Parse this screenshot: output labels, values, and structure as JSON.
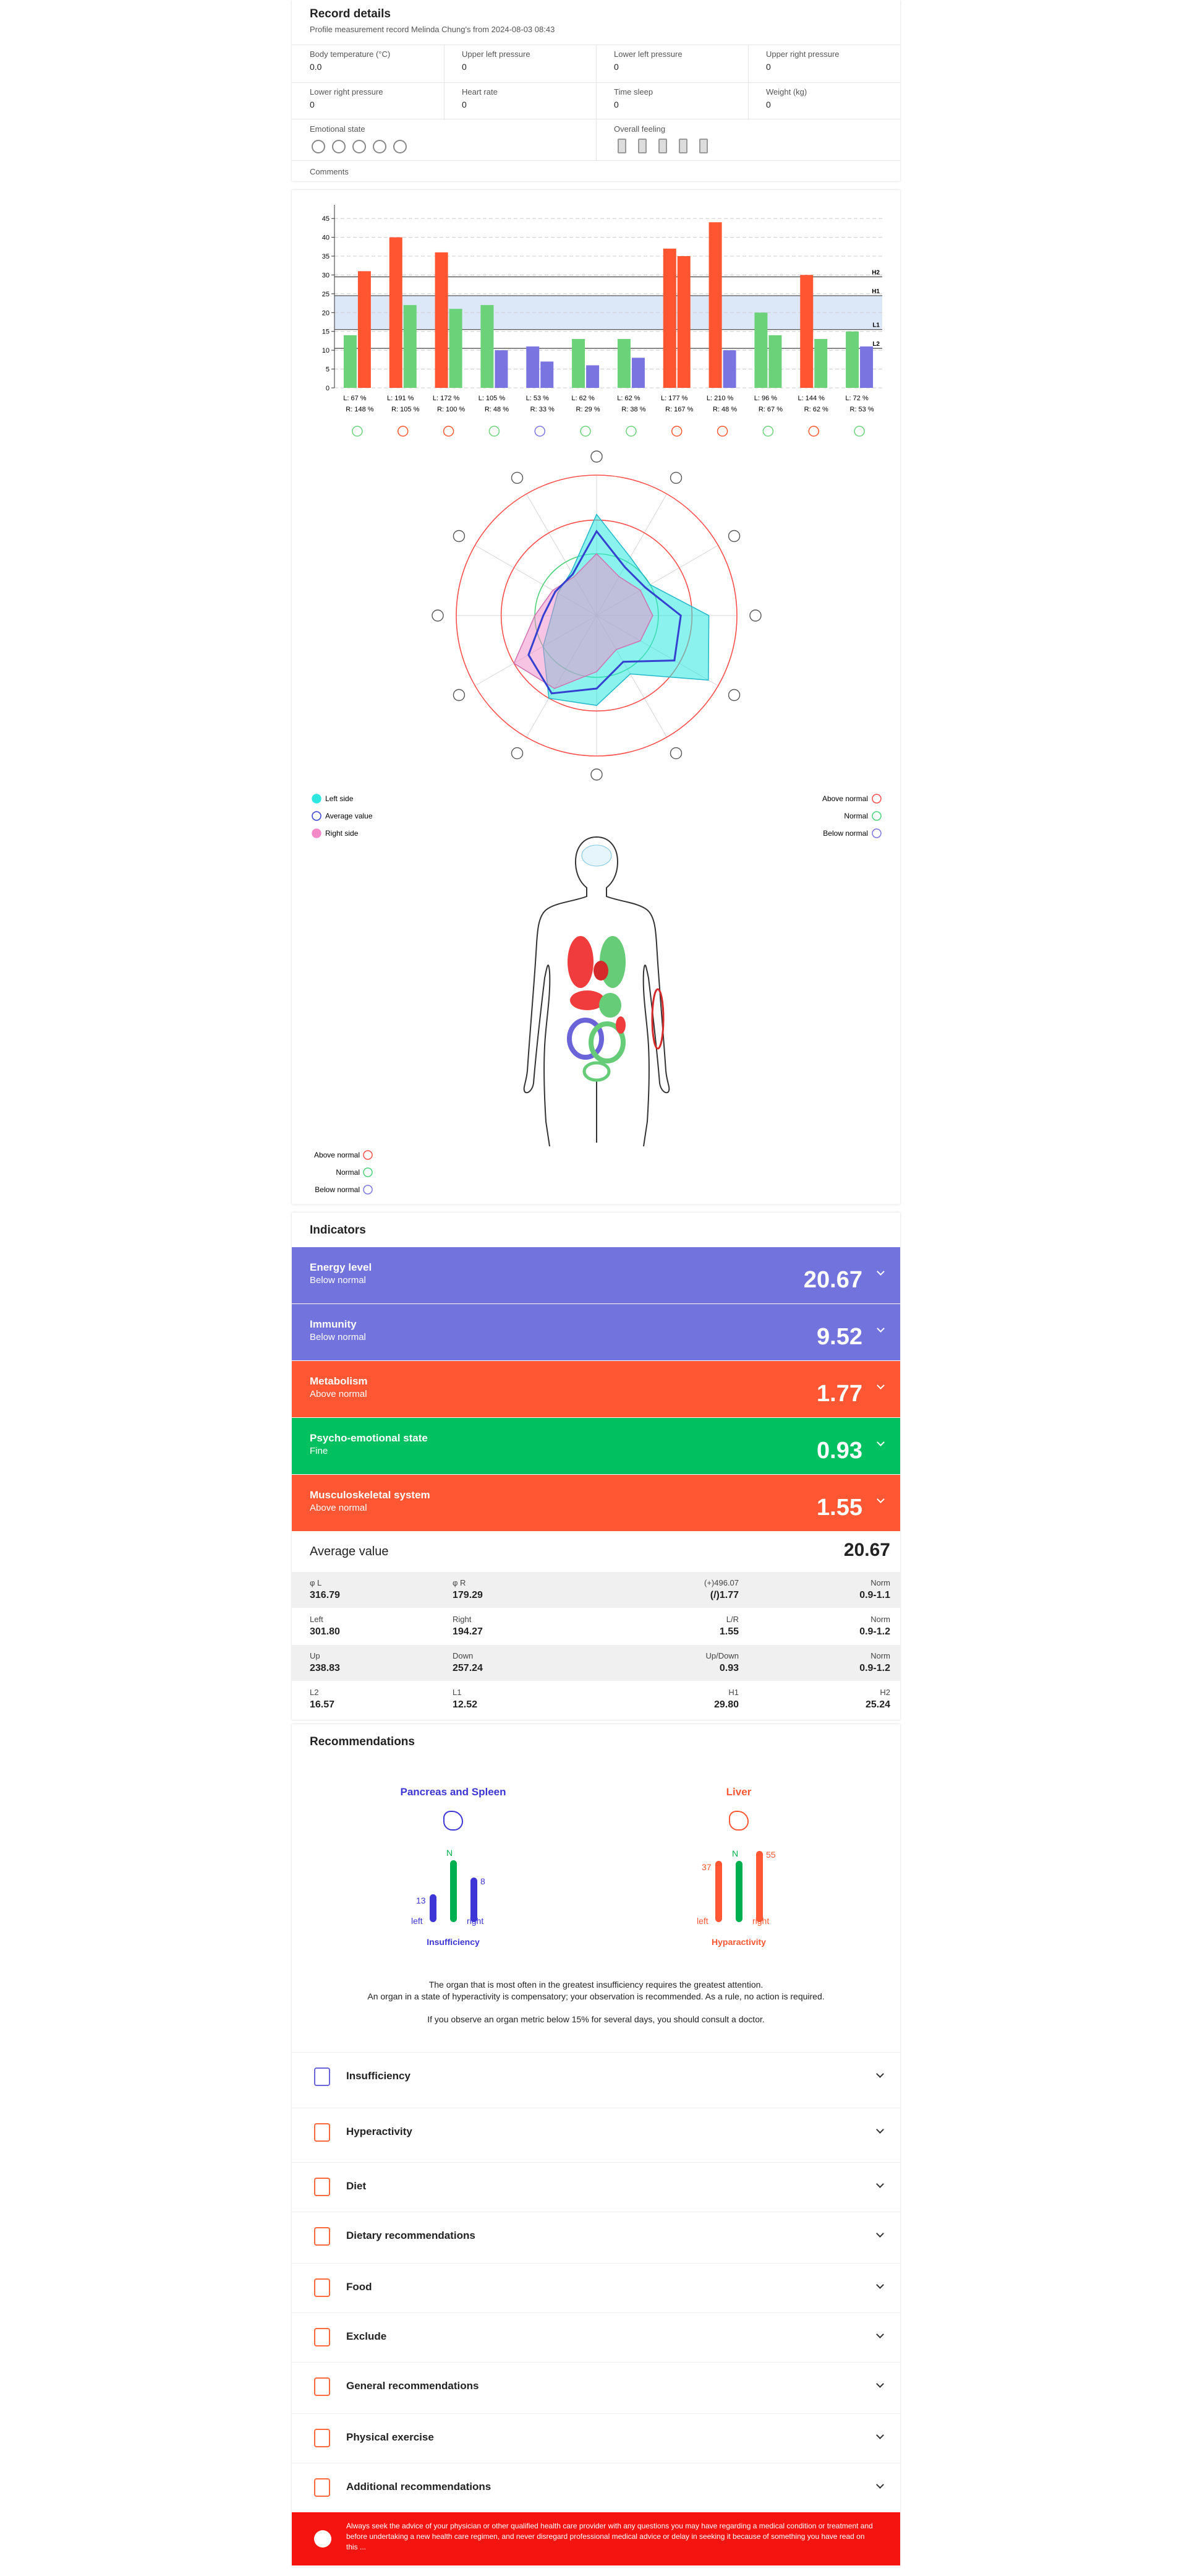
{
  "record": {
    "title": "Record details",
    "subtitle": "Profile measurement record Melinda Chung's from 2024-08-03 08:43",
    "fields": [
      {
        "label": "Body temperature (°C)",
        "value": "0.0"
      },
      {
        "label": "Upper left pressure",
        "value": "0"
      },
      {
        "label": "Lower left pressure",
        "value": "0"
      },
      {
        "label": "Upper right pressure",
        "value": "0"
      },
      {
        "label": "Lower right pressure",
        "value": "0"
      },
      {
        "label": "Heart rate",
        "value": "0"
      },
      {
        "label": "Time sleep",
        "value": "0"
      },
      {
        "label": "Weight (kg)",
        "value": "0"
      }
    ],
    "emotional_state": "Emotional state",
    "overall_feeling": "Overall feeling",
    "comments": "Comments"
  },
  "chart_data": [
    {
      "type": "bar",
      "ylim": [
        0,
        47
      ],
      "yticks": [
        0,
        5,
        10,
        15,
        20,
        25,
        30,
        35,
        40,
        45
      ],
      "grid": true,
      "x_labels": [
        [
          "L: 67 %",
          "R: 148 %"
        ],
        [
          "L: 191 %",
          "R: 105 %"
        ],
        [
          "L: 172 %",
          "R: 100 %"
        ],
        [
          "L: 105 %",
          "R: 48 %"
        ],
        [
          "L: 53 %",
          "R: 33 %"
        ],
        [
          "L: 62 %",
          "R: 29 %"
        ],
        [
          "L: 62 %",
          "R: 38 %"
        ],
        [
          "L: 177 %",
          "R: 167 %"
        ],
        [
          "L: 210 %",
          "R: 48 %"
        ],
        [
          "L: 96 %",
          "R: 67 %"
        ],
        [
          "L: 144 %",
          "R: 62 %"
        ],
        [
          "L: 72 %",
          "R: 53 %"
        ]
      ],
      "series": [
        {
          "values": [
            14,
            40,
            36,
            22,
            11,
            13,
            13,
            37,
            44,
            20,
            30,
            15
          ],
          "colors": [
            "#6bd27a",
            "#ff5530",
            "#ff5530",
            "#6bd27a",
            "#7a74e0",
            "#6bd27a",
            "#6bd27a",
            "#ff5530",
            "#ff5530",
            "#6bd27a",
            "#ff5530",
            "#6bd27a"
          ]
        },
        {
          "values": [
            31,
            22,
            21,
            10,
            7,
            6,
            8,
            35,
            10,
            14,
            13,
            11
          ],
          "colors": [
            "#ff5530",
            "#6bd27a",
            "#6bd27a",
            "#7a74e0",
            "#7a74e0",
            "#7a74e0",
            "#7a74e0",
            "#ff5530",
            "#7a74e0",
            "#6bd27a",
            "#6bd27a",
            "#7a74e0"
          ]
        }
      ],
      "reference_lines": [
        {
          "label": "H2",
          "value": 29.5
        },
        {
          "label": "H1",
          "value": 24.5
        },
        {
          "label": "L1",
          "value": 15.5
        },
        {
          "label": "L2",
          "value": 10.5
        }
      ],
      "band_color": "#dce8f8"
    },
    {
      "type": "radar",
      "rlim": [
        0,
        250
      ],
      "rings": [
        {
          "value": 250,
          "color": "#ff4d4d"
        },
        {
          "value": 170,
          "color": "#ff4d4d"
        },
        {
          "value": 110,
          "color": "#4cd07a"
        }
      ],
      "series": [
        {
          "name": "Left side",
          "color": "#2ee8e0",
          "values": [
            180,
            120,
            110,
            200,
            230,
            120,
            160,
            170,
            110,
            80,
            80,
            90
          ]
        },
        {
          "name": "Average value",
          "color": "#3340d0",
          "values": [
            150,
            100,
            100,
            150,
            160,
            95,
            130,
            160,
            140,
            95,
            85,
            85
          ]
        },
        {
          "name": "Right side",
          "color": "#f28ac8",
          "values": [
            110,
            80,
            90,
            100,
            90,
            70,
            100,
            150,
            170,
            110,
            90,
            80
          ]
        }
      ],
      "ring_legend": [
        {
          "label": "Above normal",
          "color": "#ff4d4d"
        },
        {
          "label": "Normal",
          "color": "#4cd07a"
        },
        {
          "label": "Below normal",
          "color": "#7a74e0"
        }
      ]
    }
  ],
  "body_legend": [
    {
      "label": "Above normal",
      "color": "#ff4d4d"
    },
    {
      "label": "Normal",
      "color": "#4cd07a"
    },
    {
      "label": "Below normal",
      "color": "#7a74e0"
    }
  ],
  "indicators": {
    "title": "Indicators",
    "items": [
      {
        "name": "Energy level",
        "status": "Below normal",
        "value": 20.67,
        "color": "#7373de"
      },
      {
        "name": "Immunity",
        "status": "Below normal",
        "value": 9.52,
        "color": "#7373de"
      },
      {
        "name": "Metabolism",
        "status": "Above normal",
        "value": 1.77,
        "color": "#ff5733"
      },
      {
        "name": "Psycho-emotional state",
        "status": "Fine",
        "value": 0.93,
        "color": "#00c060"
      },
      {
        "name": "Musculoskeletal system",
        "status": "Above normal",
        "value": 1.55,
        "color": "#ff5733"
      }
    ]
  },
  "average": {
    "label": "Average value",
    "value": 20.67
  },
  "stats": [
    [
      [
        "φ L",
        "316.79"
      ],
      [
        "φ R",
        "179.29"
      ],
      [
        "(+)496.07",
        "(/)1.77"
      ],
      [
        "Norm",
        "0.9-1.1"
      ]
    ],
    [
      [
        "Left",
        "301.80"
      ],
      [
        "Right",
        "194.27"
      ],
      [
        "L/R",
        "1.55"
      ],
      [
        "Norm",
        "0.9-1.2"
      ]
    ],
    [
      [
        "Up",
        "238.83"
      ],
      [
        "Down",
        "257.24"
      ],
      [
        "Up/Down",
        "0.93"
      ],
      [
        "Norm",
        "0.9-1.2"
      ]
    ],
    [
      [
        "L2",
        "16.57"
      ],
      [
        "L1",
        "12.52"
      ],
      [
        "H1",
        "29.80"
      ],
      [
        "H2",
        "25.24"
      ]
    ]
  ],
  "recommendations": {
    "title": "Recommendations",
    "organs": [
      {
        "name": "Pancreas and Spleen",
        "color": "#3d35d6",
        "left": "13",
        "normal": "N",
        "right": "8",
        "left_label": "left",
        "right_label": "right",
        "state": "Insufficiency"
      },
      {
        "name": "Liver",
        "color": "#ff5733",
        "left": "37",
        "normal": "N",
        "right": "55",
        "left_label": "left",
        "right_label": "right",
        "state": "Hyparactivity"
      }
    ],
    "notes": [
      "The organ that is most often in the greatest insufficiency requires the greatest attention.",
      "An organ in a state of hyperactivity is compensatory; your observation is recommended. As a rule, no action is required.",
      "If you observe an organ metric below 15% for several days, you should consult a doctor."
    ],
    "sections": [
      "Insufficiency",
      "Hyperactivity",
      "Diet",
      "Dietary recommendations",
      "Food",
      "Exclude",
      "General recommendations",
      "Physical exercise",
      "Additional recommendations"
    ]
  },
  "disclaimer": "Always seek the advice of your physician or other qualified health care provider with any questions you may have regarding a medical condition or treatment and before undertaking a new health care regimen, and never disregard professional medical advice or delay in seeking it because of something you have read on this ..."
}
